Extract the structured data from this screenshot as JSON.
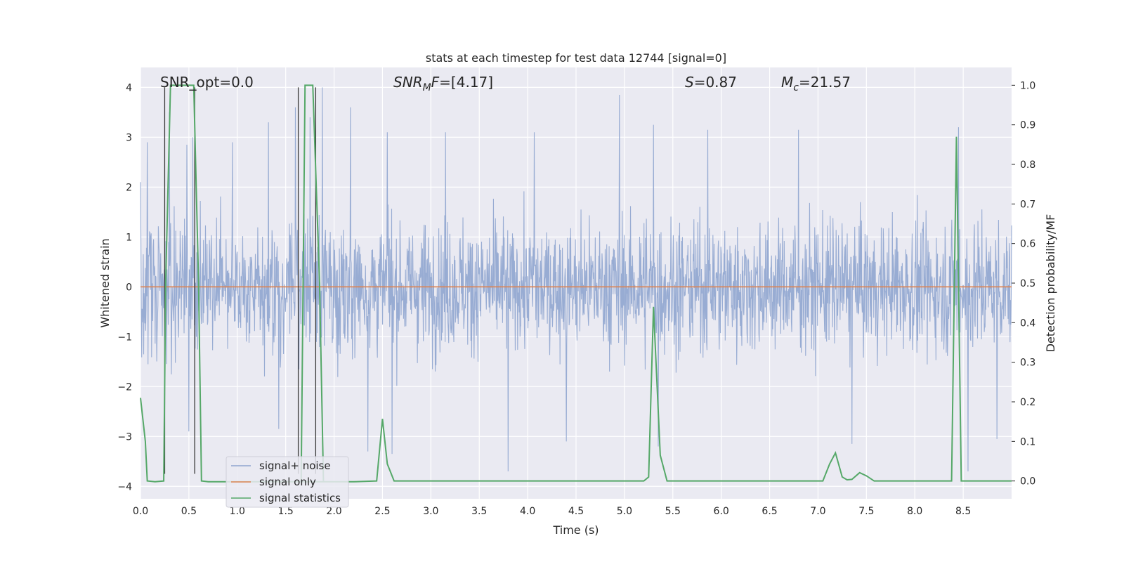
{
  "chart_data": {
    "type": "line",
    "title": "stats at each timestep for test data 12744 [signal=0]",
    "xlabel": "Time (s)",
    "ylabel": "Whitened strain",
    "y2label": "Detection probability/MF",
    "xlim": [
      0.0,
      9.0
    ],
    "ylim": [
      -4.25,
      4.4
    ],
    "y2lim": [
      -0.045,
      1.045
    ],
    "x_ticks": [
      "0.0",
      "0.5",
      "1.0",
      "1.5",
      "2.0",
      "2.5",
      "3.0",
      "3.5",
      "4.0",
      "4.5",
      "5.0",
      "5.5",
      "6.0",
      "6.5",
      "7.0",
      "7.5",
      "8.0",
      "8.5"
    ],
    "y_ticks": [
      "4",
      "3",
      "2",
      "1",
      "0",
      "−1",
      "−2",
      "−3",
      "−4"
    ],
    "y2_ticks": [
      "1.0",
      "0.9",
      "0.8",
      "0.7",
      "0.6",
      "0.5",
      "0.4",
      "0.3",
      "0.2",
      "0.1",
      "0.0"
    ],
    "grid": true,
    "annotations": {
      "snr_opt": "SNR_opt=0.0",
      "snr_mf_sym": "SNR",
      "snr_mf_sub": "M",
      "snr_mf_sym2": "F",
      "snr_mf_val": "=[4.17]",
      "s_sym": "S",
      "s_val": "=0.87",
      "mc_sym": "M",
      "mc_sub": "c",
      "mc_val": "=21.57"
    },
    "legend": {
      "location": "lower-left",
      "entries": [
        "signal+ noise",
        "signal only",
        "signal statistics"
      ]
    },
    "colors": {
      "noise": "#8fa5cf",
      "signal": "#dd8452",
      "stats": "#55a868",
      "vlines": "#3a3a3a",
      "background": "#eaeaf2"
    },
    "vlines": [
      0.25,
      0.56,
      1.63,
      1.81
    ],
    "noise_series": {
      "name": "signal+ noise",
      "description_level": "whitened noise band",
      "typical_range": [
        -1.9,
        1.9
      ],
      "peaks": [
        {
          "x": 0.0,
          "y": 2.1
        },
        {
          "x": 0.07,
          "y": 2.9
        },
        {
          "x": 0.3,
          "y": 3.5
        },
        {
          "x": 0.48,
          "y": 2.85
        },
        {
          "x": 0.54,
          "y": 3.0
        },
        {
          "x": 0.95,
          "y": 2.9
        },
        {
          "x": 1.32,
          "y": 3.3
        },
        {
          "x": 1.6,
          "y": 3.6
        },
        {
          "x": 1.75,
          "y": 3.4
        },
        {
          "x": 1.88,
          "y": 4.0
        },
        {
          "x": 2.17,
          "y": 3.6
        },
        {
          "x": 2.55,
          "y": 3.1
        },
        {
          "x": 3.15,
          "y": 3.1
        },
        {
          "x": 4.07,
          "y": 3.1
        },
        {
          "x": 4.95,
          "y": 3.85
        },
        {
          "x": 5.3,
          "y": 3.25
        },
        {
          "x": 5.86,
          "y": 3.15
        },
        {
          "x": 6.8,
          "y": 3.15
        },
        {
          "x": 8.45,
          "y": 3.2
        },
        {
          "x": 8.85,
          "y": 3.25
        }
      ],
      "troughs": [
        {
          "x": 0.5,
          "y": -2.9
        },
        {
          "x": 1.43,
          "y": -2.85
        },
        {
          "x": 2.35,
          "y": -3.3
        },
        {
          "x": 2.6,
          "y": -3.35
        },
        {
          "x": 3.8,
          "y": -3.7
        },
        {
          "x": 4.4,
          "y": -3.1
        },
        {
          "x": 5.35,
          "y": -3.2
        },
        {
          "x": 7.35,
          "y": -3.15
        },
        {
          "x": 8.55,
          "y": -3.7
        },
        {
          "x": 8.85,
          "y": -3.05
        }
      ]
    },
    "signal_series": {
      "name": "signal only",
      "x": [
        0.0,
        9.0
      ],
      "y": [
        0.0,
        0.0
      ]
    },
    "stats_series": {
      "name": "signal statistics",
      "x": [
        0.0,
        0.05,
        0.07,
        0.15,
        0.24,
        0.26,
        0.31,
        0.55,
        0.6,
        0.63,
        0.7,
        2.2,
        2.44,
        2.5,
        2.55,
        2.62,
        5.2,
        5.25,
        5.3,
        5.37,
        5.44,
        7.05,
        7.12,
        7.18,
        7.25,
        7.3,
        7.35,
        7.43,
        7.5,
        7.58,
        8.0,
        8.3,
        8.38,
        8.43,
        8.48,
        8.55,
        9.0
      ],
      "y": [
        0.21,
        0.1,
        0.0,
        -0.002,
        0.0,
        0.5,
        1.0,
        1.0,
        0.5,
        0.0,
        -0.002,
        -0.002,
        0.0,
        0.157,
        0.043,
        0.0,
        0.0,
        0.01,
        0.44,
        0.065,
        0.0,
        0.0,
        0.043,
        0.071,
        0.01,
        0.003,
        0.004,
        0.021,
        0.013,
        0.0,
        0.0,
        0.0,
        0.0,
        0.87,
        0.0,
        0.0,
        0.0
      ]
    },
    "stats_series_second_burst": {
      "x": [
        1.66,
        1.7,
        1.78,
        1.85,
        1.89
      ],
      "y": [
        0.0,
        1.0,
        1.0,
        0.5,
        0.0
      ]
    }
  }
}
